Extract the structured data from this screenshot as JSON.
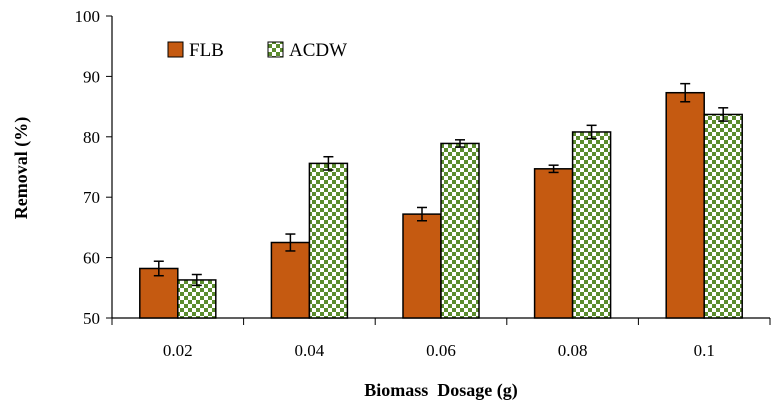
{
  "chart_data": {
    "type": "bar",
    "title": "",
    "xlabel": "Biomass  Dosage (g)",
    "ylabel": "Removal (%)",
    "categories": [
      "0.02",
      "0.04",
      "0.06",
      "0.08",
      "0.1"
    ],
    "ylim": [
      50,
      100
    ],
    "yticks": [
      "50",
      "60",
      "70",
      "80",
      "90",
      "100"
    ],
    "grid": false,
    "legend_position": "top-left",
    "series": [
      {
        "name": "FLB",
        "color": "#c55a11",
        "fill": "solid",
        "values": [
          58.2,
          62.5,
          67.2,
          74.7,
          87.3
        ],
        "errors": [
          1.2,
          1.4,
          1.1,
          0.6,
          1.5
        ]
      },
      {
        "name": "ACDW",
        "color": "#5b8c2e",
        "fill": "checker",
        "values": [
          56.3,
          75.6,
          78.9,
          80.8,
          83.7
        ],
        "errors": [
          0.9,
          1.1,
          0.6,
          1.1,
          1.1
        ]
      }
    ]
  }
}
